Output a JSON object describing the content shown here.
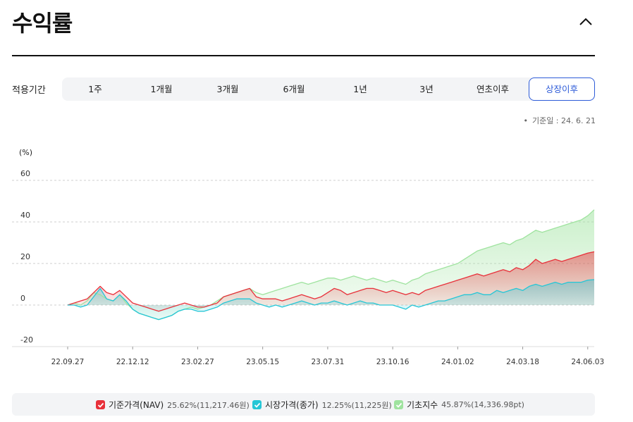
{
  "header": {
    "title": "수익률"
  },
  "period": {
    "label": "적용기간",
    "options": [
      "1주",
      "1개월",
      "3개월",
      "6개월",
      "1년",
      "3년",
      "연초이후",
      "상장이후"
    ],
    "selected": "상장이후"
  },
  "basis_date": "기준일 : 24. 6. 21",
  "colors": {
    "nav": "#e8303a",
    "market": "#25c6d6",
    "index": "#9fe39f",
    "active": "#2d5bd8"
  },
  "chart_data": {
    "type": "line",
    "ylabel": "(%)",
    "ylim": [
      -20,
      60
    ],
    "yticks": [
      "60",
      "40",
      "20",
      "0",
      "-20"
    ],
    "grid": true,
    "xticks": [
      "22.09.27",
      "22.12.12",
      "23.02.27",
      "23.05.15",
      "23.07.31",
      "23.10.16",
      "24.01.02",
      "24.03.18",
      "24.06.03"
    ],
    "x_tick_index": [
      0,
      10,
      20,
      30,
      40,
      50,
      60,
      70,
      80
    ],
    "legend_position": "bottom",
    "series": [
      {
        "name": "기준가격(NAV)",
        "value_text": "25.62%(11,217.46원)",
        "values": [
          0,
          1,
          2,
          3,
          6,
          9,
          6,
          5,
          7,
          4,
          1,
          0,
          -1,
          -2,
          -3,
          -2,
          -1,
          0,
          1,
          0,
          -1,
          -1,
          0,
          1,
          4,
          5,
          6,
          7,
          8,
          4,
          3,
          3,
          3,
          2,
          3,
          4,
          5,
          4,
          3,
          4,
          6,
          8,
          7,
          5,
          6,
          7,
          8,
          8,
          7,
          6,
          7,
          6,
          5,
          6,
          5,
          7,
          8,
          9,
          10,
          11,
          12,
          13,
          14,
          15,
          14,
          15,
          16,
          17,
          16,
          18,
          17,
          19,
          22,
          20,
          21,
          22,
          21,
          22,
          23,
          24,
          25,
          25.62
        ]
      },
      {
        "name": "시장가격(종가)",
        "value_text": "12.25%(11,225원)",
        "values": [
          0,
          0,
          -1,
          0,
          4,
          8,
          3,
          2,
          5,
          2,
          -2,
          -4,
          -5,
          -6,
          -7,
          -6,
          -5,
          -3,
          -2,
          -2,
          -3,
          -3,
          -2,
          -1,
          1,
          2,
          3,
          3,
          3,
          1,
          0,
          -1,
          0,
          -1,
          0,
          1,
          2,
          1,
          0,
          1,
          1,
          2,
          1,
          0,
          1,
          2,
          1,
          1,
          0,
          0,
          0,
          -1,
          -2,
          0,
          -1,
          0,
          1,
          2,
          2,
          3,
          4,
          5,
          5,
          6,
          5,
          5,
          7,
          6,
          7,
          8,
          7,
          9,
          10,
          9,
          10,
          11,
          10,
          11,
          11,
          11,
          12,
          12.25
        ]
      },
      {
        "name": "기초지수",
        "value_text": "45.87%(14,336.98pt)",
        "values": [
          0,
          1,
          0,
          2,
          6,
          5,
          3,
          2,
          5,
          1,
          -2,
          -4,
          -5,
          -6,
          -7,
          -6,
          -5,
          -3,
          -2,
          -1,
          -2,
          -1,
          0,
          2,
          4,
          5,
          6,
          7,
          8,
          6,
          5,
          6,
          7,
          8,
          9,
          10,
          11,
          10,
          11,
          12,
          13,
          13,
          12,
          13,
          14,
          13,
          12,
          13,
          12,
          11,
          12,
          11,
          10,
          12,
          13,
          15,
          16,
          17,
          18,
          19,
          20,
          22,
          24,
          26,
          27,
          28,
          29,
          30,
          29,
          31,
          32,
          34,
          36,
          35,
          36,
          37,
          38,
          39,
          40,
          41,
          43,
          45.87
        ]
      }
    ]
  }
}
